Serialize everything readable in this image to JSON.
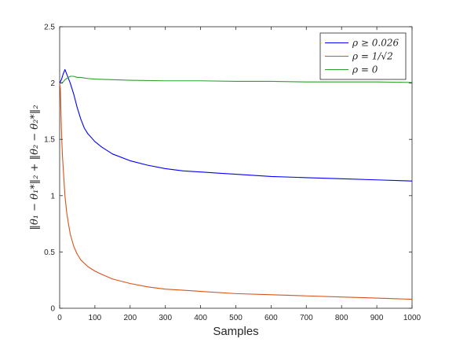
{
  "chart_data": {
    "type": "line",
    "xlabel": "Samples",
    "ylabel": "‖θ₁ − θ₁*‖₂ + ‖θ₂ − θ₂*‖₂",
    "xlim": [
      0,
      1000
    ],
    "ylim": [
      0,
      2.5
    ],
    "xticks": [
      0,
      100,
      200,
      300,
      400,
      500,
      600,
      700,
      800,
      900,
      1000
    ],
    "yticks": [
      0,
      0.5,
      1,
      1.5,
      2,
      2.5
    ],
    "ytick_labels": [
      "0",
      "0.5",
      "1",
      "1.5",
      "2",
      "2.5"
    ],
    "grid": false,
    "legend_position": "top-right",
    "series": [
      {
        "name": "ρ ≥ 0.026",
        "color": "#0000ff",
        "x": [
          0,
          5,
          10,
          15,
          20,
          30,
          40,
          50,
          60,
          70,
          80,
          100,
          120,
          150,
          200,
          250,
          300,
          350,
          400,
          450,
          500,
          600,
          700,
          800,
          900,
          1000
        ],
        "y": [
          2.0,
          2.03,
          2.08,
          2.12,
          2.08,
          2.0,
          1.9,
          1.78,
          1.68,
          1.6,
          1.55,
          1.48,
          1.43,
          1.37,
          1.31,
          1.27,
          1.24,
          1.22,
          1.21,
          1.2,
          1.19,
          1.17,
          1.16,
          1.15,
          1.14,
          1.13
        ]
      },
      {
        "name": "ρ = 1/√2",
        "color": "#d95319",
        "x": [
          0,
          2,
          4,
          6,
          8,
          10,
          12,
          15,
          20,
          25,
          30,
          40,
          50,
          60,
          70,
          80,
          100,
          120,
          150,
          200,
          250,
          300,
          350,
          400,
          500,
          600,
          700,
          800,
          900,
          1000
        ],
        "y": [
          2.0,
          1.95,
          1.7,
          1.5,
          1.35,
          1.25,
          1.15,
          1.0,
          0.85,
          0.75,
          0.66,
          0.55,
          0.48,
          0.43,
          0.4,
          0.37,
          0.33,
          0.3,
          0.26,
          0.22,
          0.19,
          0.17,
          0.16,
          0.15,
          0.13,
          0.12,
          0.11,
          0.1,
          0.09,
          0.08
        ]
      },
      {
        "name": "ρ = 0",
        "color": "#2ca02c",
        "x": [
          0,
          5,
          10,
          15,
          20,
          25,
          30,
          35,
          40,
          50,
          60,
          70,
          80,
          100,
          150,
          200,
          300,
          400,
          500,
          600,
          700,
          800,
          900,
          1000
        ],
        "y": [
          2.0,
          2.0,
          2.01,
          2.03,
          2.04,
          2.05,
          2.06,
          2.06,
          2.06,
          2.05,
          2.05,
          2.045,
          2.04,
          2.035,
          2.03,
          2.025,
          2.02,
          2.02,
          2.015,
          2.015,
          2.01,
          2.01,
          2.01,
          2.005
        ]
      }
    ]
  }
}
